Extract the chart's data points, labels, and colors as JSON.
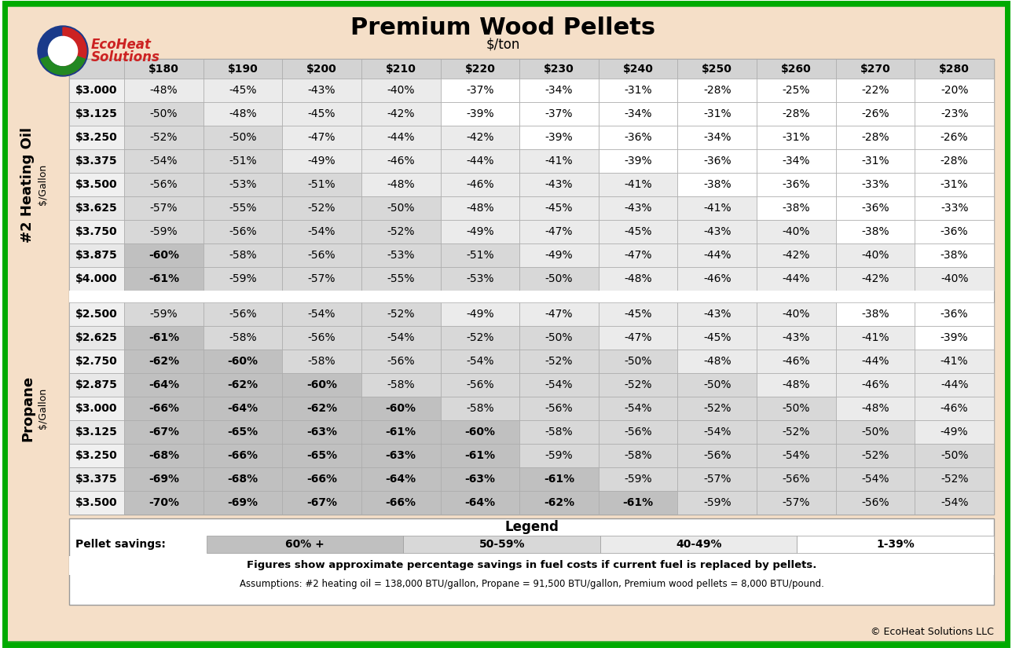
{
  "title": "Premium Wood Pellets",
  "subtitle": "$/ton",
  "col_headers": [
    "$180",
    "$190",
    "$200",
    "$210",
    "$220",
    "$230",
    "$240",
    "$250",
    "$260",
    "$270",
    "$280"
  ],
  "heating_oil_label": "#2 Heating Oil",
  "heating_oil_sublabel": "$/Gallon",
  "propane_label": "Propane",
  "propane_sublabel": "$/Gallon",
  "heating_oil_rows": [
    {
      "price": "$3.000",
      "values": [
        "-48%",
        "-45%",
        "-43%",
        "-40%",
        "-37%",
        "-34%",
        "-31%",
        "-28%",
        "-25%",
        "-22%",
        "-20%"
      ]
    },
    {
      "price": "$3.125",
      "values": [
        "-50%",
        "-48%",
        "-45%",
        "-42%",
        "-39%",
        "-37%",
        "-34%",
        "-31%",
        "-28%",
        "-26%",
        "-23%"
      ]
    },
    {
      "price": "$3.250",
      "values": [
        "-52%",
        "-50%",
        "-47%",
        "-44%",
        "-42%",
        "-39%",
        "-36%",
        "-34%",
        "-31%",
        "-28%",
        "-26%"
      ]
    },
    {
      "price": "$3.375",
      "values": [
        "-54%",
        "-51%",
        "-49%",
        "-46%",
        "-44%",
        "-41%",
        "-39%",
        "-36%",
        "-34%",
        "-31%",
        "-28%"
      ]
    },
    {
      "price": "$3.500",
      "values": [
        "-56%",
        "-53%",
        "-51%",
        "-48%",
        "-46%",
        "-43%",
        "-41%",
        "-38%",
        "-36%",
        "-33%",
        "-31%"
      ]
    },
    {
      "price": "$3.625",
      "values": [
        "-57%",
        "-55%",
        "-52%",
        "-50%",
        "-48%",
        "-45%",
        "-43%",
        "-41%",
        "-38%",
        "-36%",
        "-33%"
      ]
    },
    {
      "price": "$3.750",
      "values": [
        "-59%",
        "-56%",
        "-54%",
        "-52%",
        "-49%",
        "-47%",
        "-45%",
        "-43%",
        "-40%",
        "-38%",
        "-36%"
      ]
    },
    {
      "price": "$3.875",
      "values": [
        "-60%",
        "-58%",
        "-56%",
        "-53%",
        "-51%",
        "-49%",
        "-47%",
        "-44%",
        "-42%",
        "-40%",
        "-38%"
      ]
    },
    {
      "price": "$4.000",
      "values": [
        "-61%",
        "-59%",
        "-57%",
        "-55%",
        "-53%",
        "-50%",
        "-48%",
        "-46%",
        "-44%",
        "-42%",
        "-40%"
      ]
    }
  ],
  "propane_rows": [
    {
      "price": "$2.500",
      "values": [
        "-59%",
        "-56%",
        "-54%",
        "-52%",
        "-49%",
        "-47%",
        "-45%",
        "-43%",
        "-40%",
        "-38%",
        "-36%"
      ]
    },
    {
      "price": "$2.625",
      "values": [
        "-61%",
        "-58%",
        "-56%",
        "-54%",
        "-52%",
        "-50%",
        "-47%",
        "-45%",
        "-43%",
        "-41%",
        "-39%"
      ]
    },
    {
      "price": "$2.750",
      "values": [
        "-62%",
        "-60%",
        "-58%",
        "-56%",
        "-54%",
        "-52%",
        "-50%",
        "-48%",
        "-46%",
        "-44%",
        "-41%"
      ]
    },
    {
      "price": "$2.875",
      "values": [
        "-64%",
        "-62%",
        "-60%",
        "-58%",
        "-56%",
        "-54%",
        "-52%",
        "-50%",
        "-48%",
        "-46%",
        "-44%"
      ]
    },
    {
      "price": "$3.000",
      "values": [
        "-66%",
        "-64%",
        "-62%",
        "-60%",
        "-58%",
        "-56%",
        "-54%",
        "-52%",
        "-50%",
        "-48%",
        "-46%"
      ]
    },
    {
      "price": "$3.125",
      "values": [
        "-67%",
        "-65%",
        "-63%",
        "-61%",
        "-60%",
        "-58%",
        "-56%",
        "-54%",
        "-52%",
        "-50%",
        "-49%"
      ]
    },
    {
      "price": "$3.250",
      "values": [
        "-68%",
        "-66%",
        "-65%",
        "-63%",
        "-61%",
        "-59%",
        "-58%",
        "-56%",
        "-54%",
        "-52%",
        "-50%"
      ]
    },
    {
      "price": "$3.375",
      "values": [
        "-69%",
        "-68%",
        "-66%",
        "-64%",
        "-63%",
        "-61%",
        "-59%",
        "-57%",
        "-56%",
        "-54%",
        "-52%"
      ]
    },
    {
      "price": "$3.500",
      "values": [
        "-70%",
        "-69%",
        "-67%",
        "-66%",
        "-64%",
        "-62%",
        "-61%",
        "-59%",
        "-57%",
        "-56%",
        "-54%"
      ]
    }
  ],
  "bg_color": "#f5dfc8",
  "outer_border_color": "#00aa00",
  "table_bg": "#ffffff",
  "header_bg": "#d3d3d3",
  "row_alt_bg": "#e8e8e8",
  "row_light_bg": "#f5f5f5",
  "cell_60plus_bg": "#c0c0c0",
  "cell_50_59_bg": "#d8d8d8",
  "cell_40_49_bg": "#ebebeb",
  "cell_1_39_bg": "#ffffff",
  "legend_title": "Legend",
  "legend_items": [
    {
      "label": "60% +",
      "bg": "#c0c0c0"
    },
    {
      "label": "50-59%",
      "bg": "#d8d8d8"
    },
    {
      "label": "40-49%",
      "bg": "#ebebeb"
    },
    {
      "label": "1-39%",
      "bg": "#ffffff"
    }
  ],
  "pellet_savings_label": "Pellet savings:",
  "footnote1": "Figures show approximate percentage savings in fuel costs if current fuel is replaced by pellets.",
  "footnote2": "Assumptions: #2 heating oil = 138,000 BTU/gallon, Propane = 91,500 BTU/gallon, Premium wood pellets = 8,000 BTU/pound.",
  "copyright": "© EcoHeat Solutions LLC"
}
